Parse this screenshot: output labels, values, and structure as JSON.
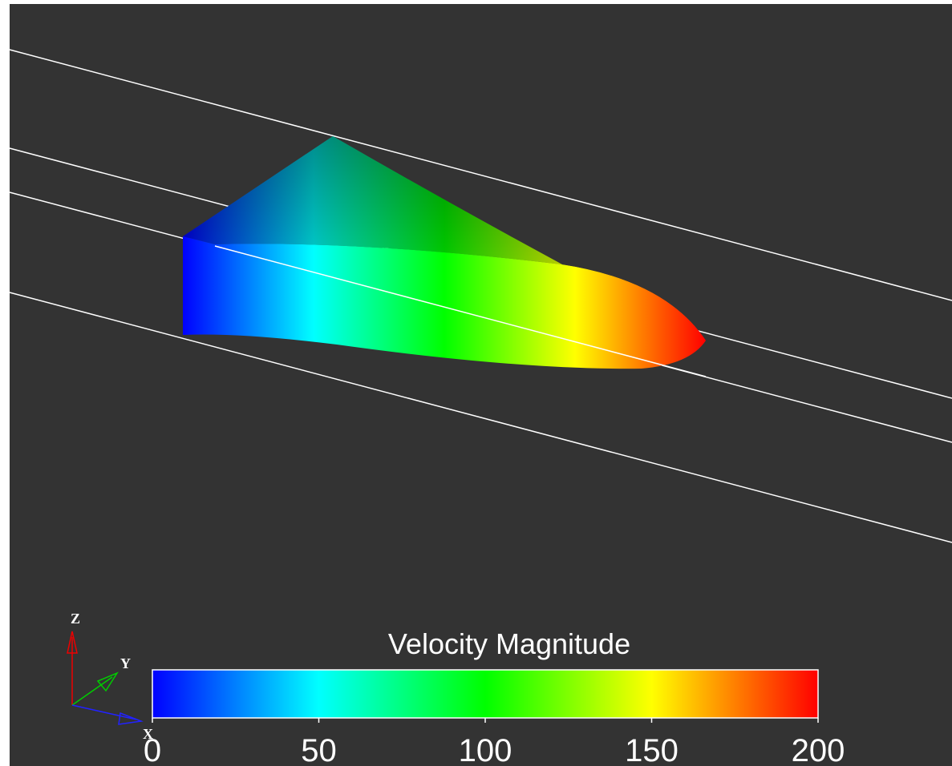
{
  "colorbar": {
    "title": "Velocity Magnitude",
    "range": [
      0,
      200
    ],
    "ticks": [
      0,
      50,
      100,
      150,
      200
    ],
    "colors": [
      "#0000ff",
      "#00ffff",
      "#00ff00",
      "#ffff00",
      "#ff0000"
    ]
  },
  "axes_triad": {
    "x": "X",
    "y": "Y",
    "z": "Z"
  }
}
